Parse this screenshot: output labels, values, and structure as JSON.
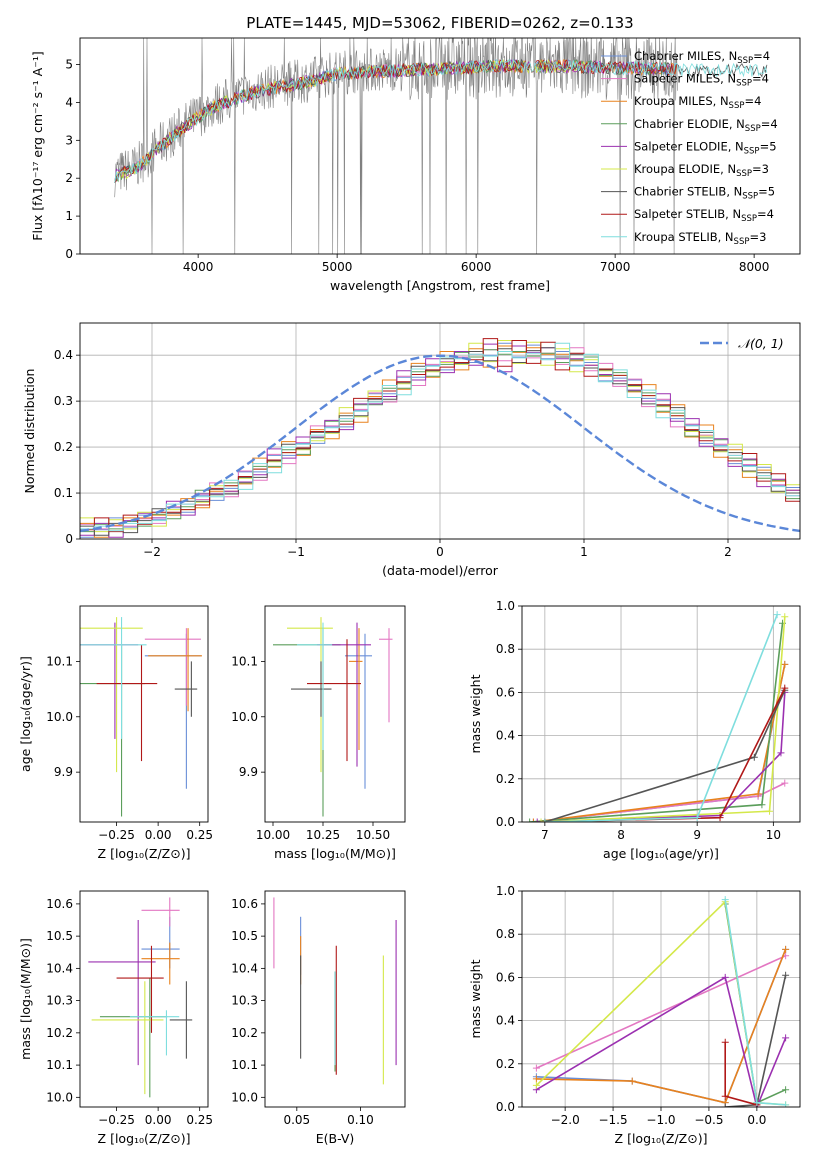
{
  "figure_title": "PLATE=1445, MJD=53062, FIBERID=0262, z=0.133",
  "fits": [
    {
      "name": "Chabrier MILES",
      "nssp": "4",
      "color": "#6a8fd8"
    },
    {
      "name": "Salpeter MILES",
      "nssp": "4",
      "color": "#e377c2"
    },
    {
      "name": "Kroupa MILES",
      "nssp": "4",
      "color": "#e8821e"
    },
    {
      "name": "Chabrier ELODIE",
      "nssp": "4",
      "color": "#5b9e5b"
    },
    {
      "name": "Salpeter ELODIE",
      "nssp": "5",
      "color": "#9b30b0"
    },
    {
      "name": "Kroupa ELODIE",
      "nssp": "3",
      "color": "#d4e84a"
    },
    {
      "name": "Chabrier STELIB",
      "nssp": "5",
      "color": "#555555"
    },
    {
      "name": "Salpeter STELIB",
      "nssp": "4",
      "color": "#b01818"
    },
    {
      "name": "Kroupa STELIB",
      "nssp": "3",
      "color": "#7fdede"
    }
  ],
  "chart_data": [
    {
      "id": "spectrum",
      "type": "line",
      "xlabel": "wavelength [Angstrom, rest frame]",
      "ylabel": "Flux [fλ10⁻¹⁷ erg cm⁻² s⁻¹ A⁻¹]",
      "xlim": [
        3150,
        8330
      ],
      "ylim": [
        0,
        5.7
      ],
      "xticks": [
        4000,
        5000,
        6000,
        7000,
        8000
      ],
      "yticks": [
        0,
        1,
        2,
        3,
        4,
        5
      ],
      "data_color": "#808080",
      "continuum_x": [
        3400,
        3550,
        3700,
        3900,
        4100,
        4300,
        4500,
        4800,
        5000,
        5200,
        5500,
        5800,
        6100,
        6400,
        6700,
        7000,
        7300,
        7500
      ],
      "continuum_y": [
        2.1,
        2.3,
        2.8,
        3.4,
        3.9,
        4.2,
        4.4,
        4.6,
        4.8,
        4.85,
        4.9,
        4.95,
        5.0,
        5.0,
        5.0,
        4.95,
        4.95,
        4.9
      ],
      "grid": false,
      "legend": "top-right"
    },
    {
      "id": "residuals",
      "type": "line",
      "xlabel": "(data-model)/error",
      "ylabel": "Normed distribution",
      "xlim": [
        -2.5,
        2.5
      ],
      "ylim": [
        0,
        0.47
      ],
      "xticks": [
        -2,
        -1,
        0,
        1,
        2
      ],
      "yticks": [
        0.0,
        0.1,
        0.2,
        0.3,
        0.4
      ],
      "legend_label": "𝒩(0, 1)",
      "gaussian_color": "#5b87d8",
      "bin_edges_start": -2.5,
      "bin_width": 0.1,
      "histograms": [
        [
          0.02,
          0.02,
          0.03,
          0.03,
          0.04,
          0.05,
          0.06,
          0.07,
          0.09,
          0.1,
          0.11,
          0.13,
          0.15,
          0.17,
          0.19,
          0.2,
          0.22,
          0.24,
          0.26,
          0.28,
          0.3,
          0.32,
          0.34,
          0.36,
          0.37,
          0.38,
          0.39,
          0.4,
          0.4,
          0.41,
          0.4,
          0.41,
          0.4,
          0.4,
          0.39,
          0.38,
          0.36,
          0.35,
          0.33,
          0.31,
          0.29,
          0.27,
          0.24,
          0.22,
          0.2,
          0.18,
          0.16,
          0.14,
          0.12,
          0.1
        ],
        [
          0.02,
          0.03,
          0.02,
          0.04,
          0.04,
          0.05,
          0.07,
          0.06,
          0.09,
          0.11,
          0.1,
          0.14,
          0.14,
          0.18,
          0.18,
          0.21,
          0.23,
          0.25,
          0.25,
          0.29,
          0.31,
          0.31,
          0.35,
          0.35,
          0.38,
          0.37,
          0.4,
          0.39,
          0.42,
          0.38,
          0.42,
          0.39,
          0.42,
          0.38,
          0.4,
          0.37,
          0.37,
          0.34,
          0.34,
          0.3,
          0.3,
          0.26,
          0.25,
          0.21,
          0.21,
          0.17,
          0.17,
          0.13,
          0.13,
          0.09
        ],
        [
          0.03,
          0.02,
          0.03,
          0.03,
          0.05,
          0.04,
          0.06,
          0.08,
          0.08,
          0.1,
          0.12,
          0.12,
          0.16,
          0.16,
          0.2,
          0.19,
          0.23,
          0.23,
          0.27,
          0.27,
          0.31,
          0.33,
          0.33,
          0.37,
          0.36,
          0.4,
          0.38,
          0.41,
          0.39,
          0.42,
          0.39,
          0.42,
          0.39,
          0.41,
          0.38,
          0.39,
          0.35,
          0.36,
          0.32,
          0.32,
          0.28,
          0.28,
          0.23,
          0.24,
          0.19,
          0.19,
          0.15,
          0.15,
          0.11,
          0.11
        ]
      ]
    },
    {
      "id": "age-vs-Z",
      "type": "scatter",
      "xlabel": "Z [log₁₀(Z/Z⊙)]",
      "ylabel": "age  [log₁₀(age/yr)]",
      "xlim": [
        -0.47,
        0.3
      ],
      "ylim": [
        9.81,
        10.2
      ],
      "xticks": [
        -0.25,
        0.0,
        0.25
      ],
      "yticks": [
        9.9,
        10.0,
        10.1
      ],
      "xticklabels": [
        "−0.25",
        "0.00",
        "0.25"
      ],
      "yticklabels": [
        "9.9",
        "10.0",
        "10.1"
      ],
      "points": [
        {
          "fit": 0,
          "x": 0.17,
          "y": 10.11,
          "xerr": 0.25,
          "yerr": [
            0.24,
            0.04
          ]
        },
        {
          "fit": 1,
          "x": 0.17,
          "y": 10.14,
          "xerr": 0.25,
          "yerr": [
            0.12,
            0.02
          ]
        },
        {
          "fit": 2,
          "x": 0.18,
          "y": 10.11,
          "xerr": 0.24,
          "yerr": [
            0.1,
            0.05
          ]
        },
        {
          "fit": 3,
          "x": -0.22,
          "y": 10.06,
          "xerr": 0.4,
          "yerr": [
            0.24,
            0.07
          ]
        },
        {
          "fit": 4,
          "x": -0.26,
          "y": 10.13,
          "xerr": 0.4,
          "yerr": [
            0.17,
            0.04
          ]
        },
        {
          "fit": 5,
          "x": -0.25,
          "y": 10.16,
          "xerr": 0.45,
          "yerr": [
            0.26,
            0.02
          ]
        },
        {
          "fit": 6,
          "x": 0.2,
          "y": 10.05,
          "xerr": 0.1,
          "yerr": [
            0.05,
            0.05
          ]
        },
        {
          "fit": 7,
          "x": -0.1,
          "y": 10.06,
          "xerr": 0.27,
          "yerr": [
            0.14,
            0.07
          ]
        },
        {
          "fit": 8,
          "x": -0.22,
          "y": 10.13,
          "xerr": 0.43,
          "yerr": [
            0.17,
            0.05
          ]
        }
      ]
    },
    {
      "id": "age-vs-mass",
      "type": "scatter",
      "xlabel": "mass [log₁₀(M/M⊙)]",
      "ylabel": "",
      "xlim": [
        9.96,
        10.66
      ],
      "ylim": [
        9.81,
        10.2
      ],
      "xticks": [
        10.0,
        10.25,
        10.5
      ],
      "yticks": [
        9.9,
        10.0,
        10.1
      ],
      "xticklabels": [
        "10.00",
        "10.25",
        "10.50"
      ],
      "yticklabels": [
        "9.9",
        "10.0",
        "10.1"
      ],
      "points": [
        {
          "fit": 0,
          "x": 10.46,
          "y": 10.11,
          "xerr": 0.1,
          "yerr": [
            0.24,
            0.04
          ]
        },
        {
          "fit": 1,
          "x": 10.58,
          "y": 10.14,
          "xerr": 0.05,
          "yerr": [
            0.15,
            0.02
          ]
        },
        {
          "fit": 2,
          "x": 10.43,
          "y": 10.1,
          "xerr": 0.05,
          "yerr": [
            0.16,
            0.06
          ]
        },
        {
          "fit": 3,
          "x": 10.25,
          "y": 10.13,
          "xerr": 0.25,
          "yerr": [
            0.31,
            0.03
          ]
        },
        {
          "fit": 4,
          "x": 10.42,
          "y": 10.13,
          "xerr": 0.2,
          "yerr": [
            0.22,
            0.04
          ]
        },
        {
          "fit": 5,
          "x": 10.24,
          "y": 10.16,
          "xerr": 0.17,
          "yerr": [
            0.26,
            0.02
          ]
        },
        {
          "fit": 6,
          "x": 10.24,
          "y": 10.05,
          "xerr": 0.15,
          "yerr": [
            0.05,
            0.05
          ]
        },
        {
          "fit": 7,
          "x": 10.37,
          "y": 10.06,
          "xerr": 0.2,
          "yerr": [
            0.14,
            0.08
          ]
        },
        {
          "fit": 8,
          "x": 10.25,
          "y": 10.13,
          "xerr": 0.13,
          "yerr": [
            0.19,
            0.04
          ]
        }
      ]
    },
    {
      "id": "mass-weight-vs-age",
      "type": "line",
      "xlabel": "age  [log₁₀(age/yr)]",
      "ylabel": "mass weight",
      "xlim": [
        6.7,
        10.35
      ],
      "ylim": [
        0.0,
        1.0
      ],
      "xticks": [
        7,
        8,
        9,
        10
      ],
      "yticks": [
        0.0,
        0.2,
        0.4,
        0.6,
        0.8,
        1.0
      ],
      "xticklabels": [
        "7",
        "8",
        "9",
        "10"
      ],
      "yticklabels": [
        "0.0",
        "0.2",
        "0.4",
        "0.6",
        "0.8",
        "1.0"
      ],
      "grid": true,
      "lines": [
        {
          "fit": 0,
          "x": [
            6.85,
            9.8,
            10.15
          ],
          "y": [
            0.0,
            0.12,
            0.73
          ]
        },
        {
          "fit": 1,
          "x": [
            6.85,
            9.8,
            10.15
          ],
          "y": [
            0.0,
            0.12,
            0.18
          ]
        },
        {
          "fit": 2,
          "x": [
            6.85,
            9.8,
            10.15
          ],
          "y": [
            0.0,
            0.13,
            0.73
          ]
        },
        {
          "fit": 3,
          "x": [
            6.8,
            9.85,
            10.12
          ],
          "y": [
            0.0,
            0.08,
            0.92
          ]
        },
        {
          "fit": 4,
          "x": [
            6.9,
            9.3,
            10.1,
            10.15
          ],
          "y": [
            0.0,
            0.03,
            0.32,
            0.6
          ]
        },
        {
          "fit": 5,
          "x": [
            6.95,
            9.95,
            10.15
          ],
          "y": [
            0.0,
            0.05,
            0.95
          ]
        },
        {
          "fit": 6,
          "x": [
            7.0,
            9.75,
            10.15
          ],
          "y": [
            0.0,
            0.3,
            0.61
          ]
        },
        {
          "fit": 7,
          "x": [
            7.0,
            9.3,
            10.15
          ],
          "y": [
            0.0,
            0.02,
            0.62
          ]
        },
        {
          "fit": 8,
          "x": [
            7.0,
            9.0,
            10.05
          ],
          "y": [
            0.0,
            0.02,
            0.96
          ]
        }
      ]
    },
    {
      "id": "mass-vs-Z",
      "type": "scatter",
      "xlabel": "Z [log₁₀(Z/Z⊙)]",
      "ylabel": "mass [log₁₀(M/M⊙)]",
      "xlim": [
        -0.47,
        0.3
      ],
      "ylim": [
        9.97,
        10.64
      ],
      "xticks": [
        -0.25,
        0.0,
        0.25
      ],
      "yticks": [
        10.0,
        10.1,
        10.2,
        10.3,
        10.4,
        10.5,
        10.6
      ],
      "xticklabels": [
        "−0.25",
        "0.00",
        "0.25"
      ],
      "yticklabels": [
        "10.0",
        "10.1",
        "10.2",
        "10.3",
        "10.4",
        "10.5",
        "10.6"
      ],
      "points": [
        {
          "fit": 0,
          "x": 0.07,
          "y": 10.46,
          "xerr": 0.17,
          "yerr": [
            0.06,
            0.1
          ]
        },
        {
          "fit": 1,
          "x": 0.07,
          "y": 10.58,
          "xerr": 0.17,
          "yerr": [
            0.05,
            0.04
          ]
        },
        {
          "fit": 2,
          "x": 0.07,
          "y": 10.43,
          "xerr": 0.17,
          "yerr": [
            0.08,
            0.05
          ]
        },
        {
          "fit": 3,
          "x": -0.05,
          "y": 10.25,
          "xerr": 0.3,
          "yerr": [
            0.25,
            0.12
          ]
        },
        {
          "fit": 4,
          "x": -0.12,
          "y": 10.42,
          "xerr": 0.3,
          "yerr": [
            0.32,
            0.13
          ]
        },
        {
          "fit": 5,
          "x": -0.08,
          "y": 10.24,
          "xerr": 0.32,
          "yerr": [
            0.23,
            0.12
          ]
        },
        {
          "fit": 6,
          "x": 0.17,
          "y": 10.24,
          "xerr": 0.1,
          "yerr": [
            0.12,
            0.12
          ]
        },
        {
          "fit": 7,
          "x": -0.04,
          "y": 10.37,
          "xerr": 0.21,
          "yerr": [
            0.17,
            0.1
          ]
        },
        {
          "fit": 8,
          "x": 0.05,
          "y": 10.25,
          "xerr": 0.22,
          "yerr": [
            0.12,
            0.02
          ]
        }
      ]
    },
    {
      "id": "mass-vs-ebv",
      "type": "scatter",
      "xlabel": "E(B-V)",
      "ylabel": "",
      "xlim": [
        0.025,
        0.135
      ],
      "ylim": [
        9.97,
        10.64
      ],
      "xticks": [
        0.05,
        0.1
      ],
      "yticks": [
        10.0,
        10.1,
        10.2,
        10.3,
        10.4,
        10.5,
        10.6
      ],
      "xticklabels": [
        "0.05",
        "0.10"
      ],
      "yticklabels": [
        "10.0",
        "10.1",
        "10.2",
        "10.3",
        "10.4",
        "10.5",
        "10.6"
      ],
      "points": [
        {
          "fit": 0,
          "x": 0.053,
          "y": 10.46,
          "yerr": [
            0.08,
            0.1
          ]
        },
        {
          "fit": 1,
          "x": 0.032,
          "y": 10.58,
          "yerr": [
            0.18,
            0.04
          ]
        },
        {
          "fit": 2,
          "x": 0.053,
          "y": 10.43,
          "yerr": [
            0.08,
            0.07
          ]
        },
        {
          "fit": 3,
          "x": 0.08,
          "y": 10.25,
          "yerr": [
            0.17,
            0.14
          ]
        },
        {
          "fit": 4,
          "x": 0.128,
          "y": 10.42,
          "yerr": [
            0.32,
            0.13
          ]
        },
        {
          "fit": 5,
          "x": 0.118,
          "y": 10.24,
          "yerr": [
            0.2,
            0.2
          ]
        },
        {
          "fit": 6,
          "x": 0.053,
          "y": 10.24,
          "yerr": [
            0.12,
            0.2
          ]
        },
        {
          "fit": 7,
          "x": 0.081,
          "y": 10.37,
          "yerr": [
            0.3,
            0.1
          ]
        },
        {
          "fit": 8,
          "x": 0.08,
          "y": 10.25,
          "yerr": [
            0.15,
            0.14
          ]
        }
      ]
    },
    {
      "id": "mass-weight-vs-Z",
      "type": "line",
      "xlabel": "Z [log₁₀(Z/Z⊙)]",
      "ylabel": "mass weight",
      "xlim": [
        -2.45,
        0.45
      ],
      "ylim": [
        0.0,
        1.0
      ],
      "xticks": [
        -2.0,
        -1.5,
        -1.0,
        -0.5,
        0.0
      ],
      "yticks": [
        0.0,
        0.2,
        0.4,
        0.6,
        0.8,
        1.0
      ],
      "xticklabels": [
        "−2.0",
        "−1.5",
        "−1.0",
        "−0.5",
        "0.0"
      ],
      "yticklabels": [
        "0.0",
        "0.2",
        "0.4",
        "0.6",
        "0.8",
        "1.0"
      ],
      "grid": true,
      "lines": [
        {
          "fit": 0,
          "x": [
            -2.3,
            -1.3,
            -0.33,
            0.3
          ],
          "y": [
            0.14,
            0.12,
            0.02,
            0.73
          ]
        },
        {
          "fit": 1,
          "x": [
            -2.3,
            0.3
          ],
          "y": [
            0.18,
            0.7
          ]
        },
        {
          "fit": 2,
          "x": [
            -2.3,
            -1.3,
            -0.33,
            0.3
          ],
          "y": [
            0.13,
            0.12,
            0.02,
            0.73
          ]
        },
        {
          "fit": 3,
          "x": [
            -0.33,
            0.0,
            0.3
          ],
          "y": [
            0.94,
            0.02,
            0.08
          ]
        },
        {
          "fit": 4,
          "x": [
            -2.3,
            -0.33,
            0.0,
            0.3
          ],
          "y": [
            0.08,
            0.6,
            0.0,
            0.32
          ]
        },
        {
          "fit": 5,
          "x": [
            -2.3,
            -0.33,
            0.0,
            0.3
          ],
          "y": [
            0.1,
            0.95,
            0.02,
            0.01
          ]
        },
        {
          "fit": 6,
          "x": [
            -0.33,
            0.0,
            0.3
          ],
          "y": [
            0.0,
            0.01,
            0.61
          ]
        },
        {
          "fit": 7,
          "x": [
            -0.33,
            -0.33,
            0.0
          ],
          "y": [
            0.3,
            0.05,
            0.01
          ]
        },
        {
          "fit": 8,
          "x": [
            -0.33,
            0.0,
            0.3
          ],
          "y": [
            0.96,
            0.02,
            0.01
          ]
        }
      ]
    }
  ]
}
